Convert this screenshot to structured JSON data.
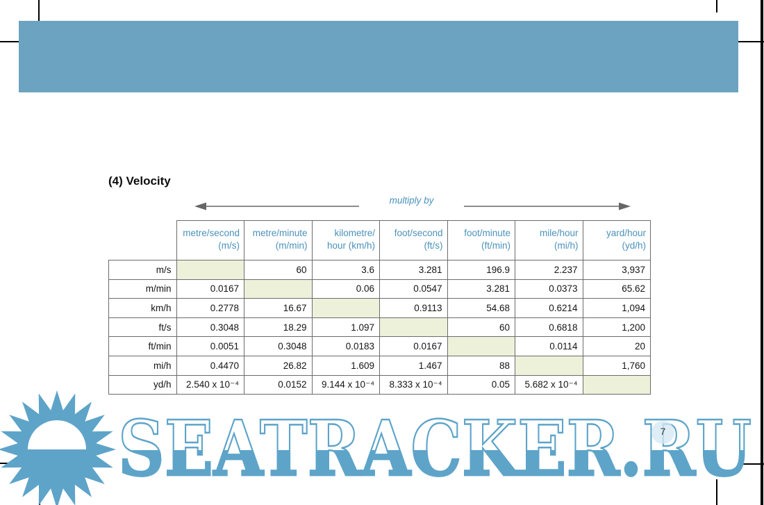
{
  "page": {
    "title": "(4) Velocity",
    "number": "7",
    "multiply_label": "multiply by"
  },
  "table": {
    "col_headers": [
      "metre/second\n(m/s)",
      "metre/minute\n(m/min)",
      "kilometre/\nhour (km/h)",
      "foot/second\n(ft/s)",
      "foot/minute\n(ft/min)",
      "mile/hour\n(mi/h)",
      "yard/hour\n(yd/h)"
    ],
    "rows": [
      {
        "label": "m/s",
        "cells": [
          "",
          "60",
          "3.6",
          "3.281",
          "196.9",
          "2.237",
          "3,937"
        ]
      },
      {
        "label": "m/min",
        "cells": [
          "0.0167",
          "",
          "0.06",
          "0.0547",
          "3.281",
          "0.0373",
          "65.62"
        ]
      },
      {
        "label": "km/h",
        "cells": [
          "0.2778",
          "16.67",
          "",
          "0.9113",
          "54.68",
          "0.6214",
          "1,094"
        ]
      },
      {
        "label": "ft/s",
        "cells": [
          "0.3048",
          "18.29",
          "1.097",
          "",
          "60",
          "0.6818",
          "1,200"
        ]
      },
      {
        "label": "ft/min",
        "cells": [
          "0.0051",
          "0.3048",
          "0.0183",
          "0.0167",
          "",
          "0.0114",
          "20"
        ]
      },
      {
        "label": "mi/h",
        "cells": [
          "0.4470",
          "26.82",
          "1.609",
          "1.467",
          "88",
          "",
          "1,760"
        ]
      },
      {
        "label": "yd/h",
        "cells": [
          "2.540 x 10⁻⁴",
          "0.0152",
          "9.144 x 10⁻⁴",
          "8.333 x 10⁻⁴",
          "0.05",
          "5.682 x 10⁻⁴",
          ""
        ]
      }
    ]
  },
  "watermark": {
    "text": "SEATRACKER.RU"
  },
  "colors": {
    "band_blue": "#6BA3C0",
    "header_text_blue": "#4A92BA",
    "watermark_blue": "#5EA4C9",
    "diagonal_cell": "#EDF1DA",
    "grid_line": "#6b6b6b",
    "arrow_gray": "#666666"
  }
}
